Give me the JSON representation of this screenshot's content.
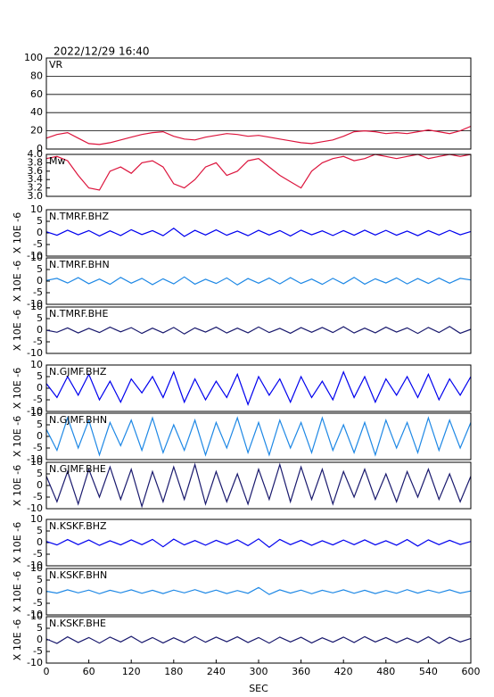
{
  "chart_data": {
    "type": "line",
    "title": "2022/12/29 16:40",
    "xlabel": "SEC",
    "xlim": [
      0,
      600
    ],
    "xticks": [
      0,
      60,
      120,
      180,
      240,
      300,
      360,
      420,
      480,
      540,
      600
    ],
    "x": [
      0,
      15,
      30,
      45,
      60,
      75,
      90,
      105,
      120,
      135,
      150,
      165,
      180,
      195,
      210,
      225,
      240,
      255,
      270,
      285,
      300,
      315,
      330,
      345,
      360,
      375,
      390,
      405,
      420,
      435,
      450,
      465,
      480,
      495,
      510,
      525,
      540,
      555,
      570,
      585,
      600
    ],
    "panels": [
      {
        "label": "VR",
        "color": "#dc143c",
        "ylim": [
          0,
          100
        ],
        "yticks": [
          0,
          20,
          40,
          60,
          80,
          100
        ],
        "grid": true,
        "values": [
          12,
          16,
          18,
          12,
          6,
          5,
          7,
          10,
          13,
          16,
          18,
          19,
          14,
          11,
          10,
          13,
          15,
          17,
          16,
          14,
          15,
          13,
          11,
          9,
          7,
          6,
          8,
          10,
          14,
          19,
          20,
          19,
          17,
          18,
          17,
          19,
          21,
          19,
          17,
          20,
          25
        ]
      },
      {
        "label": "Mw",
        "color": "#dc143c",
        "ylim": [
          3.0,
          4.0
        ],
        "yticks": [
          {
            "value": 3,
            "label": "3.0"
          },
          3.2,
          3.4,
          3.6,
          3.8,
          {
            "value": 4,
            "label": "4.0"
          }
        ],
        "grid": false,
        "values": [
          3.9,
          3.95,
          3.85,
          3.5,
          3.2,
          3.15,
          3.6,
          3.7,
          3.55,
          3.8,
          3.85,
          3.7,
          3.3,
          3.2,
          3.4,
          3.7,
          3.8,
          3.5,
          3.6,
          3.85,
          3.9,
          3.7,
          3.5,
          3.35,
          3.2,
          3.6,
          3.8,
          3.9,
          3.95,
          3.85,
          3.9,
          4.0,
          3.95,
          3.9,
          3.95,
          4.0,
          3.9,
          3.95,
          4.0,
          3.95,
          4.0
        ]
      },
      {
        "label": "N.TMRF.BHZ",
        "ylabel": "X 10E -6",
        "color": "#0000ee",
        "ylim": [
          -10,
          10
        ],
        "yticks": [
          -10,
          -5,
          0,
          5,
          10
        ],
        "grid": false,
        "values": [
          0.5,
          -1,
          1.2,
          -0.8,
          1,
          -1.3,
          0.9,
          -1.1,
          1.4,
          -0.7,
          1,
          -1.2,
          2,
          -1.5,
          1.1,
          -0.9,
          1.3,
          -1,
          0.8,
          -1.2,
          1.1,
          -0.9,
          1,
          -1.3,
          1.2,
          -0.8,
          0.9,
          -1.1,
          1,
          -1,
          1.2,
          -0.9,
          1.1,
          -1,
          0.8,
          -1.2,
          1,
          -0.9,
          1.1,
          -0.8,
          0.6
        ]
      },
      {
        "label": "N.TMRF.BHN",
        "ylabel": "X 10E -6",
        "color": "#1e88e5",
        "ylim": [
          -10,
          10
        ],
        "yticks": [
          -10,
          -5,
          0,
          5,
          10
        ],
        "grid": false,
        "values": [
          0.3,
          1.2,
          -0.8,
          1.5,
          -1.1,
          0.9,
          -1.4,
          1.6,
          -0.9,
          1.2,
          -1.5,
          1,
          -1.2,
          1.8,
          -1.3,
          0.8,
          -1,
          1.4,
          -1.6,
          1.1,
          -0.9,
          1.3,
          -1.2,
          1.5,
          -1,
          0.9,
          -1.4,
          1.2,
          -1.1,
          1.6,
          -1.3,
          1,
          -0.8,
          1.4,
          -1.2,
          1.1,
          -1,
          1.3,
          -0.9,
          1.2,
          0.5
        ]
      },
      {
        "label": "N.TMRF.BHE",
        "ylabel": "X 10E -6",
        "color": "#1a1a6e",
        "ylim": [
          -10,
          10
        ],
        "yticks": [
          -10,
          -5,
          0,
          5,
          10
        ],
        "grid": false,
        "values": [
          0,
          -0.9,
          1,
          -1.2,
          0.8,
          -1,
          1.3,
          -0.7,
          1.1,
          -1.4,
          0.9,
          -1.1,
          1.2,
          -1.6,
          1,
          -0.8,
          1.3,
          -1.2,
          0.9,
          -1.1,
          1.4,
          -1,
          0.8,
          -1.3,
          1.1,
          -0.9,
          1.2,
          -1,
          1.5,
          -1.2,
          0.9,
          -1.1,
          1.3,
          -0.8,
          1,
          -1.4,
          1.2,
          -1,
          1.6,
          -1.3,
          0.4
        ]
      },
      {
        "label": "N.GJMF.BHZ",
        "ylabel": "X 10E -6",
        "color": "#0000ee",
        "ylim": [
          -10,
          10
        ],
        "yticks": [
          -10,
          -5,
          0,
          5,
          10
        ],
        "grid": false,
        "values": [
          2,
          -4,
          5,
          -3,
          6,
          -5,
          3,
          -6,
          4,
          -2,
          5,
          -4,
          7,
          -6,
          4,
          -5,
          3,
          -4,
          6,
          -7,
          5,
          -3,
          4,
          -6,
          5,
          -4,
          3,
          -5,
          7,
          -4,
          5,
          -6,
          4,
          -3,
          5,
          -4,
          6,
          -5,
          4,
          -3,
          5
        ]
      },
      {
        "label": "N.GJMF.BHN",
        "ylabel": "X 10E -6",
        "color": "#1e88e5",
        "ylim": [
          -10,
          10
        ],
        "yticks": [
          -10,
          -5,
          0,
          5,
          10
        ],
        "grid": false,
        "values": [
          3,
          -6,
          8,
          -5,
          7,
          -8,
          6,
          -4,
          7,
          -6,
          8,
          -7,
          5,
          -6,
          7,
          -8,
          6,
          -5,
          8,
          -7,
          6,
          -8,
          7,
          -5,
          6,
          -7,
          8,
          -6,
          5,
          -7,
          6,
          -8,
          7,
          -5,
          6,
          -7,
          8,
          -6,
          7,
          -5,
          6
        ]
      },
      {
        "label": "N.GJMF.BHE",
        "ylabel": "X 10E -6",
        "color": "#1a1a6e",
        "ylim": [
          -10,
          10
        ],
        "yticks": [
          -10,
          -5,
          0,
          5,
          10
        ],
        "grid": false,
        "values": [
          4,
          -7,
          6,
          -8,
          7,
          -5,
          8,
          -6,
          7,
          -9,
          6,
          -7,
          8,
          -6,
          9,
          -8,
          6,
          -7,
          5,
          -8,
          7,
          -6,
          9,
          -7,
          8,
          -6,
          7,
          -8,
          6,
          -5,
          7,
          -6,
          5,
          -7,
          6,
          -5,
          7,
          -6,
          5,
          -7,
          4
        ]
      },
      {
        "label": "N.KSKF.BHZ",
        "ylabel": "X 10E -6",
        "color": "#0000ee",
        "ylim": [
          -10,
          10
        ],
        "yticks": [
          -10,
          -5,
          0,
          5,
          10
        ],
        "grid": false,
        "values": [
          0.5,
          -1,
          1.3,
          -0.9,
          1.1,
          -1.2,
          0.8,
          -1,
          1.2,
          -0.9,
          1.4,
          -1.8,
          1.5,
          -1,
          0.9,
          -1.1,
          1,
          -0.8,
          1.2,
          -1.3,
          1.6,
          -2,
          1.4,
          -0.9,
          1,
          -1.2,
          0.8,
          -1,
          1.1,
          -0.9,
          1.2,
          -1,
          0.8,
          -1.1,
          1.3,
          -1.5,
          1.2,
          -0.9,
          1,
          -0.8,
          0.5
        ]
      },
      {
        "label": "N.KSKF.BHN",
        "ylabel": "X 10E -6",
        "color": "#1e88e5",
        "ylim": [
          -10,
          10
        ],
        "yticks": [
          -10,
          -5,
          0,
          5,
          10
        ],
        "grid": false,
        "values": [
          0.2,
          -0.6,
          0.8,
          -0.5,
          0.7,
          -0.9,
          0.6,
          -0.5,
          0.8,
          -0.7,
          0.6,
          -0.8,
          0.7,
          -0.5,
          0.9,
          -0.6,
          0.7,
          -0.8,
          0.5,
          -0.7,
          1.8,
          -1.2,
          0.8,
          -0.6,
          0.7,
          -0.9,
          0.6,
          -0.5,
          0.8,
          -0.7,
          0.6,
          -0.8,
          0.5,
          -0.7,
          0.9,
          -0.6,
          0.7,
          -0.5,
          0.8,
          -0.6,
          0.3
        ]
      },
      {
        "label": "N.KSKF.BHE",
        "ylabel": "X 10E -6",
        "color": "#1a1a6e",
        "ylim": [
          -10,
          10
        ],
        "yticks": [
          -10,
          -5,
          0,
          5,
          10
        ],
        "grid": false,
        "values": [
          0.4,
          -1.5,
          1.3,
          -1.1,
          1,
          -1.4,
          1.2,
          -0.9,
          1.5,
          -1.2,
          1,
          -1.3,
          0.9,
          -1.1,
          1.4,
          -1,
          1.2,
          -0.8,
          1.3,
          -1.1,
          1,
          -1.4,
          1.2,
          -0.9,
          1.1,
          -1.3,
          0.9,
          -1,
          1.2,
          -1.1,
          1.4,
          -0.9,
          1,
          -1.2,
          0.8,
          -1.1,
          1.3,
          -1.5,
          1.1,
          -0.9,
          0.6
        ]
      }
    ]
  }
}
